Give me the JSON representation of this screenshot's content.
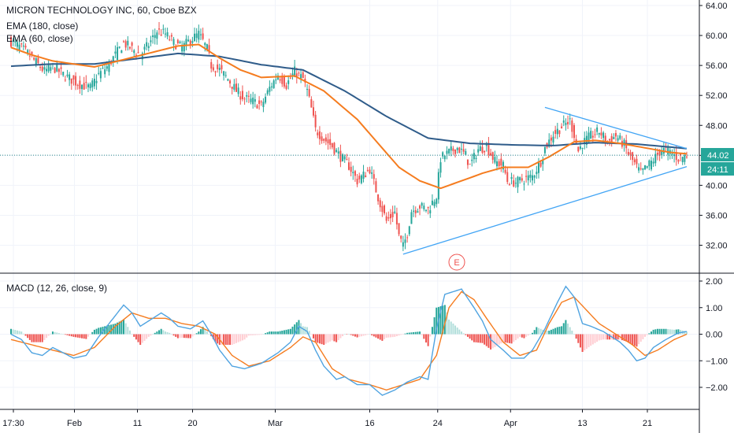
{
  "header": {
    "symbol_line": "MICRON TECHNOLOGY INC, 60, Cboe BZX",
    "ema_slow": "EMA (180, close)",
    "ema_fast": "EMA (60, close)"
  },
  "macd_header": "MACD (12, 26, close, 9)",
  "price_badge": "44.02",
  "countdown_badge": "24:11",
  "earnings_marker": "E",
  "colors": {
    "up": "#26a69a",
    "down": "#ef5350",
    "ema_slow": "#2f5c8a",
    "ema_fast": "#f57c1f",
    "trendline": "#42a5f5",
    "macd": "#4fa3e0",
    "signal": "#f57c1f",
    "hist_up_strong": "#26a69a",
    "hist_up_weak": "#b2dfdb",
    "hist_down_strong": "#ef5350",
    "hist_down_weak": "#ffcdd2",
    "price_line": "#2a8a8a"
  },
  "chart_data": [
    {
      "type": "candlestick",
      "title": "MICRON TECHNOLOGY INC, 60, Cboe BZX",
      "ylim": [
        29.0,
        65.0
      ],
      "y_ticks": [
        "32.00",
        "36.00",
        "40.00",
        "44.00",
        "48.00",
        "52.00",
        "56.00",
        "60.00",
        "64.00"
      ],
      "x_ticks": [
        "17:30",
        "Feb",
        "11",
        "20",
        "Mar",
        "16",
        "24",
        "Apr",
        "13",
        "21"
      ],
      "last_price": 44.02,
      "price_path": [
        [
          0,
          59.2
        ],
        [
          4,
          58.5
        ],
        [
          8,
          57.6
        ],
        [
          12,
          56.4
        ],
        [
          16,
          55.2
        ],
        [
          20,
          55.8
        ],
        [
          26,
          54.6
        ],
        [
          32,
          53.6
        ],
        [
          38,
          53.0
        ],
        [
          42,
          54.8
        ],
        [
          46,
          55.8
        ],
        [
          50,
          57.4
        ],
        [
          54,
          59.0
        ],
        [
          58,
          58.2
        ],
        [
          62,
          57.4
        ],
        [
          66,
          58.8
        ],
        [
          70,
          60.6
        ],
        [
          74,
          60.2
        ],
        [
          78,
          59.0
        ],
        [
          82,
          58.4
        ],
        [
          86,
          59.4
        ],
        [
          90,
          60.2
        ],
        [
          94,
          58.2
        ],
        [
          96,
          56.0
        ],
        [
          100,
          55.4
        ],
        [
          104,
          54.2
        ],
        [
          108,
          52.6
        ],
        [
          112,
          51.6
        ],
        [
          116,
          51.2
        ],
        [
          120,
          50.6
        ],
        [
          124,
          53.0
        ],
        [
          128,
          54.8
        ],
        [
          132,
          53.4
        ],
        [
          136,
          55.2
        ],
        [
          140,
          54.2
        ],
        [
          142,
          52.6
        ],
        [
          144,
          50.2
        ],
        [
          146,
          47.4
        ],
        [
          150,
          46.2
        ],
        [
          154,
          45.2
        ],
        [
          158,
          43.8
        ],
        [
          162,
          42.6
        ],
        [
          166,
          40.6
        ],
        [
          170,
          41.6
        ],
        [
          172,
          42.2
        ],
        [
          176,
          38.4
        ],
        [
          180,
          35.2
        ],
        [
          184,
          36.4
        ],
        [
          186,
          33.2
        ],
        [
          188,
          31.8
        ],
        [
          190,
          33.6
        ],
        [
          192,
          36.6
        ],
        [
          196,
          37.2
        ],
        [
          200,
          36.8
        ],
        [
          204,
          38.6
        ],
        [
          206,
          43.6
        ],
        [
          210,
          44.4
        ],
        [
          214,
          45.0
        ],
        [
          218,
          44.0
        ],
        [
          220,
          42.6
        ],
        [
          224,
          44.8
        ],
        [
          228,
          45.2
        ],
        [
          232,
          43.2
        ],
        [
          236,
          42.6
        ],
        [
          238,
          40.6
        ],
        [
          242,
          40.4
        ],
        [
          246,
          40.8
        ],
        [
          250,
          41.2
        ],
        [
          254,
          43.2
        ],
        [
          256,
          45.0
        ],
        [
          260,
          46.8
        ],
        [
          264,
          47.8
        ],
        [
          268,
          48.6
        ],
        [
          270,
          46.8
        ],
        [
          272,
          44.6
        ],
        [
          274,
          45.6
        ],
        [
          278,
          46.6
        ],
        [
          282,
          47.2
        ],
        [
          286,
          45.8
        ],
        [
          290,
          46.6
        ],
        [
          294,
          45.4
        ],
        [
          296,
          44.2
        ],
        [
          300,
          42.4
        ],
        [
          302,
          41.6
        ],
        [
          304,
          42.2
        ],
        [
          308,
          43.4
        ],
        [
          312,
          44.8
        ],
        [
          316,
          44.4
        ],
        [
          320,
          43.6
        ],
        [
          324,
          44.02
        ]
      ],
      "ema_180_path": [
        [
          0,
          55.9
        ],
        [
          20,
          56.2
        ],
        [
          40,
          56.2
        ],
        [
          60,
          56.9
        ],
        [
          80,
          57.6
        ],
        [
          100,
          57.2
        ],
        [
          120,
          56.1
        ],
        [
          140,
          55.4
        ],
        [
          160,
          52.6
        ],
        [
          180,
          49.2
        ],
        [
          200,
          46.3
        ],
        [
          220,
          45.6
        ],
        [
          240,
          45.4
        ],
        [
          260,
          45.3
        ],
        [
          280,
          45.7
        ],
        [
          300,
          45.5
        ],
        [
          324,
          44.9
        ]
      ],
      "ema_60_path": [
        [
          0,
          58.4
        ],
        [
          10,
          57.4
        ],
        [
          20,
          56.6
        ],
        [
          40,
          55.8
        ],
        [
          60,
          57.2
        ],
        [
          80,
          58.6
        ],
        [
          90,
          58.8
        ],
        [
          100,
          57.0
        ],
        [
          110,
          55.4
        ],
        [
          120,
          54.4
        ],
        [
          136,
          54.6
        ],
        [
          150,
          52.6
        ],
        [
          166,
          48.8
        ],
        [
          176,
          45.6
        ],
        [
          186,
          42.4
        ],
        [
          196,
          40.6
        ],
        [
          206,
          39.6
        ],
        [
          216,
          40.6
        ],
        [
          226,
          41.6
        ],
        [
          236,
          42.4
        ],
        [
          248,
          42.4
        ],
        [
          258,
          43.8
        ],
        [
          270,
          45.8
        ],
        [
          280,
          46.0
        ],
        [
          292,
          45.6
        ],
        [
          304,
          45.0
        ],
        [
          316,
          44.4
        ],
        [
          324,
          44.2
        ]
      ],
      "trendlines": [
        {
          "name": "upper",
          "from": [
            256,
            50.4
          ],
          "to": [
            324,
            44.9
          ]
        },
        {
          "name": "lower",
          "from": [
            188,
            30.8
          ],
          "to": [
            324,
            42.5
          ]
        }
      ],
      "earnings_at": 210
    },
    {
      "type": "macd",
      "title": "MACD (12, 26, close, 9)",
      "ylim": [
        -2.5,
        2.1
      ],
      "y_ticks": [
        "2.00",
        "1.00",
        "0.00",
        "−1.00",
        "−2.00"
      ],
      "macd_path": [
        [
          0,
          0.0
        ],
        [
          5,
          -0.2
        ],
        [
          10,
          -0.7
        ],
        [
          15,
          -0.8
        ],
        [
          20,
          -0.5
        ],
        [
          25,
          -0.7
        ],
        [
          30,
          -0.9
        ],
        [
          36,
          -0.8
        ],
        [
          42,
          -0.1
        ],
        [
          48,
          0.5
        ],
        [
          54,
          1.1
        ],
        [
          58,
          0.8
        ],
        [
          62,
          0.3
        ],
        [
          66,
          0.5
        ],
        [
          72,
          0.8
        ],
        [
          76,
          0.6
        ],
        [
          80,
          0.3
        ],
        [
          86,
          0.2
        ],
        [
          92,
          0.5
        ],
        [
          96,
          0.0
        ],
        [
          100,
          -0.6
        ],
        [
          106,
          -1.2
        ],
        [
          112,
          -1.3
        ],
        [
          120,
          -1.1
        ],
        [
          128,
          -0.7
        ],
        [
          134,
          -0.3
        ],
        [
          138,
          0.3
        ],
        [
          142,
          0.1
        ],
        [
          146,
          -0.6
        ],
        [
          150,
          -1.2
        ],
        [
          156,
          -1.7
        ],
        [
          160,
          -1.6
        ],
        [
          166,
          -1.9
        ],
        [
          172,
          -1.9
        ],
        [
          178,
          -2.3
        ],
        [
          184,
          -2.1
        ],
        [
          190,
          -1.8
        ],
        [
          196,
          -1.6
        ],
        [
          200,
          -1.7
        ],
        [
          204,
          0.2
        ],
        [
          208,
          1.5
        ],
        [
          212,
          1.6
        ],
        [
          216,
          1.7
        ],
        [
          222,
          1.0
        ],
        [
          226,
          0.5
        ],
        [
          230,
          -0.2
        ],
        [
          236,
          -0.6
        ],
        [
          240,
          -0.9
        ],
        [
          246,
          -0.9
        ],
        [
          250,
          -0.6
        ],
        [
          256,
          0.2
        ],
        [
          262,
          1.2
        ],
        [
          266,
          1.8
        ],
        [
          270,
          1.4
        ],
        [
          274,
          0.4
        ],
        [
          278,
          0.3
        ],
        [
          284,
          0.1
        ],
        [
          288,
          -0.1
        ],
        [
          292,
          -0.3
        ],
        [
          296,
          -0.6
        ],
        [
          300,
          -1.0
        ],
        [
          304,
          -0.9
        ],
        [
          308,
          -0.5
        ],
        [
          314,
          -0.2
        ],
        [
          320,
          0.05
        ],
        [
          324,
          0.1
        ]
      ],
      "signal_path": [
        [
          0,
          -0.2
        ],
        [
          10,
          -0.4
        ],
        [
          20,
          -0.6
        ],
        [
          30,
          -0.8
        ],
        [
          40,
          -0.5
        ],
        [
          50,
          0.3
        ],
        [
          58,
          0.8
        ],
        [
          66,
          0.6
        ],
        [
          74,
          0.6
        ],
        [
          82,
          0.4
        ],
        [
          90,
          0.3
        ],
        [
          98,
          0.0
        ],
        [
          106,
          -0.8
        ],
        [
          114,
          -1.2
        ],
        [
          124,
          -1.0
        ],
        [
          134,
          -0.5
        ],
        [
          140,
          -0.1
        ],
        [
          146,
          -0.3
        ],
        [
          154,
          -1.3
        ],
        [
          162,
          -1.7
        ],
        [
          172,
          -1.9
        ],
        [
          180,
          -2.1
        ],
        [
          188,
          -1.9
        ],
        [
          196,
          -1.7
        ],
        [
          204,
          -0.8
        ],
        [
          210,
          1.0
        ],
        [
          216,
          1.6
        ],
        [
          222,
          1.3
        ],
        [
          228,
          0.6
        ],
        [
          236,
          -0.3
        ],
        [
          244,
          -0.8
        ],
        [
          252,
          -0.6
        ],
        [
          258,
          0.4
        ],
        [
          264,
          1.2
        ],
        [
          270,
          1.4
        ],
        [
          276,
          0.9
        ],
        [
          282,
          0.4
        ],
        [
          290,
          0.0
        ],
        [
          298,
          -0.4
        ],
        [
          304,
          -0.8
        ],
        [
          310,
          -0.6
        ],
        [
          318,
          -0.2
        ],
        [
          324,
          0.0
        ]
      ]
    }
  ]
}
